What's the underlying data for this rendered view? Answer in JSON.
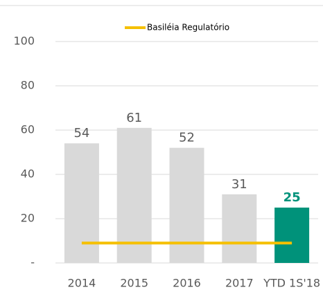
{
  "chart_data": {
    "type": "bar",
    "categories": [
      "2014",
      "2015",
      "2016",
      "2017",
      "YTD 1S'18"
    ],
    "series": [
      {
        "type": "bar",
        "colors": [
          "#d9d9d9",
          "#d9d9d9",
          "#d9d9d9",
          "#d9d9d9",
          "#00927a"
        ],
        "label_colors": [
          "#595959",
          "#595959",
          "#595959",
          "#595959",
          "#00927a"
        ],
        "values": [
          54,
          61,
          52,
          31,
          25
        ]
      },
      {
        "type": "line",
        "name": "Basiléia Regulatório",
        "color": "#f5c000",
        "values": [
          9,
          9,
          9,
          9,
          9
        ]
      }
    ],
    "ylim": [
      0,
      110
    ],
    "yticks": [
      {
        "value": 0,
        "label": "-"
      },
      20,
      40,
      60,
      80,
      100
    ],
    "grid": true,
    "legend": "top"
  }
}
